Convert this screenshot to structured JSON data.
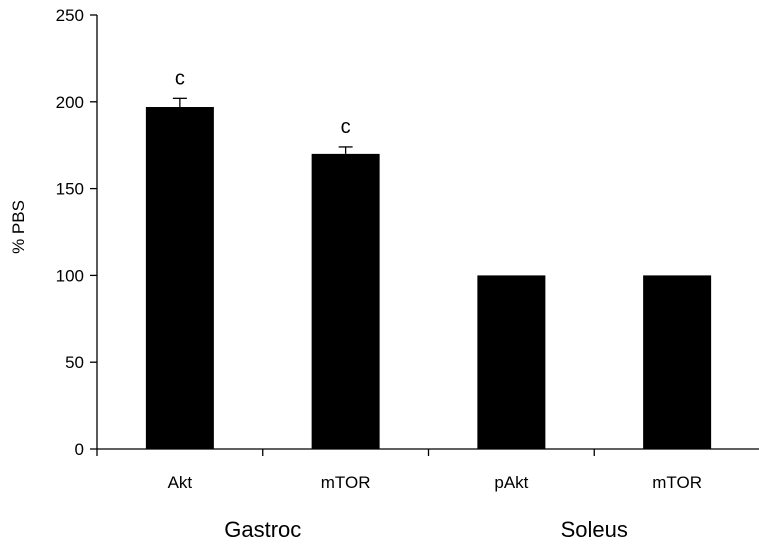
{
  "chart_data": {
    "type": "bar",
    "title": "",
    "xlabel": "",
    "ylabel": "% PBS",
    "ylim": [
      0,
      250
    ],
    "yticks": [
      0,
      50,
      100,
      150,
      200,
      250
    ],
    "grid": false,
    "categories": [
      "Akt",
      "mTOR",
      "pAkt",
      "mTOR"
    ],
    "groups": [
      {
        "label": "Gastroc",
        "start": 0,
        "count": 2
      },
      {
        "label": "Soleus",
        "start": 2,
        "count": 2
      }
    ],
    "values": [
      197,
      170,
      100,
      100
    ],
    "errors": [
      5,
      4,
      0,
      0
    ],
    "annotations": [
      "c",
      "c",
      "",
      ""
    ],
    "bar_color": "#000000"
  }
}
